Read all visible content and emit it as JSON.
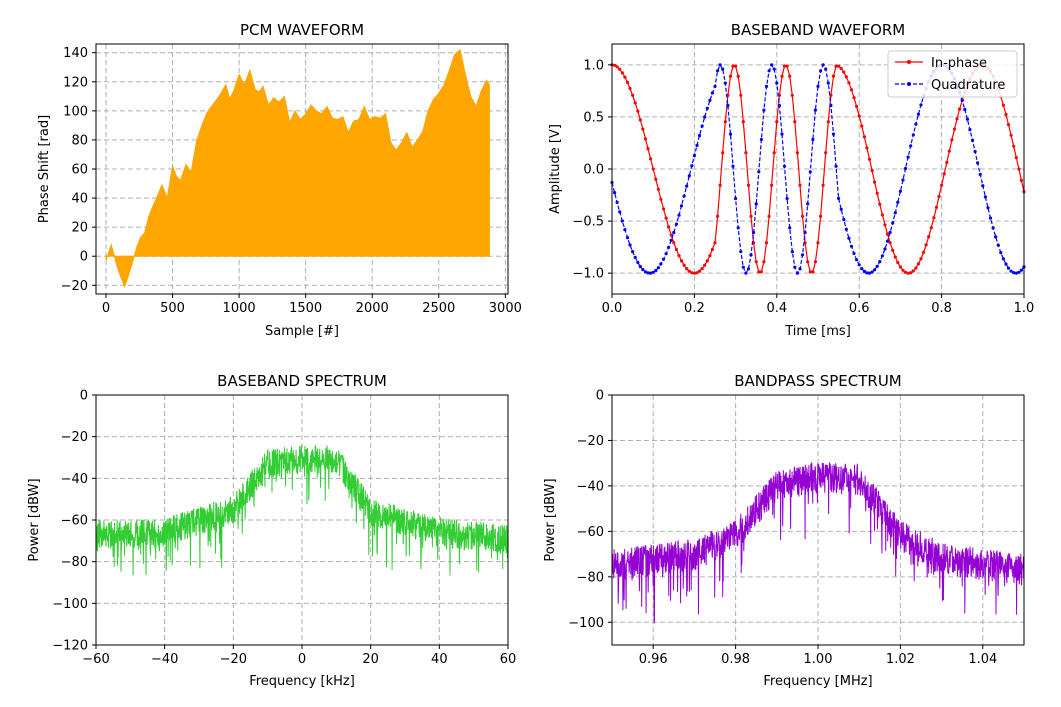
{
  "chart_data": [
    {
      "type": "area",
      "title": "PCM WAVEFORM",
      "xlabel": "Sample [#]",
      "ylabel": "Phase Shift [rad]",
      "xlim": [
        -75,
        3020
      ],
      "ylim": [
        -26,
        146
      ],
      "xticks": [
        0,
        500,
        1000,
        1500,
        2000,
        2500,
        3000
      ],
      "xtick_labels": [
        "0",
        "500",
        "1000",
        "1500",
        "2000",
        "2500",
        "3000"
      ],
      "yticks": [
        -20,
        0,
        20,
        40,
        60,
        80,
        100,
        120,
        140
      ],
      "ytick_labels": [
        "−20",
        "0",
        "20",
        "40",
        "60",
        "80",
        "100",
        "120",
        "140"
      ],
      "grid": true,
      "color": "#ffa500",
      "series": [
        {
          "x": [
            0,
            40,
            80,
            110,
            140,
            170,
            200,
            230,
            260,
            290,
            320,
            350,
            380,
            420,
            460,
            500,
            530,
            560,
            600,
            640,
            680,
            720,
            760,
            800,
            850,
            900,
            930,
            960,
            1000,
            1040,
            1080,
            1120,
            1150,
            1180,
            1220,
            1260,
            1300,
            1340,
            1380,
            1420,
            1460,
            1500,
            1540,
            1580,
            1620,
            1660,
            1700,
            1740,
            1780,
            1820,
            1860,
            1900,
            1940,
            1980,
            2020,
            2060,
            2100,
            2140,
            2180,
            2220,
            2260,
            2300,
            2340,
            2380,
            2420,
            2460,
            2500,
            2540,
            2580,
            2620,
            2660,
            2700,
            2740,
            2780,
            2820,
            2860,
            2880
          ],
          "y": [
            -3,
            8,
            -6,
            -14,
            -21,
            -13,
            -4,
            6,
            13,
            16,
            27,
            34,
            40,
            49,
            40,
            62,
            55,
            52,
            63,
            58,
            79,
            90,
            99,
            104,
            110,
            118,
            108,
            114,
            125,
            118,
            128,
            115,
            113,
            117,
            104,
            109,
            106,
            110,
            92,
            100,
            94,
            98,
            104,
            100,
            98,
            103,
            95,
            94,
            96,
            85,
            93,
            94,
            103,
            94,
            96,
            95,
            98,
            78,
            73,
            78,
            85,
            75,
            80,
            86,
            100,
            108,
            112,
            118,
            128,
            139,
            142,
            125,
            110,
            103,
            114,
            121,
            118
          ]
        }
      ]
    },
    {
      "type": "line",
      "title": "BASEBAND WAVEFORM",
      "xlabel": "Time [ms]",
      "ylabel": "Amplitude [V]",
      "xlim": [
        0,
        1.0
      ],
      "ylim": [
        -1.2,
        1.2
      ],
      "xticks": [
        0,
        0.2,
        0.4,
        0.6,
        0.8,
        1.0
      ],
      "xtick_labels": [
        "0.0",
        "0.2",
        "0.4",
        "0.6",
        "0.8",
        "1.0"
      ],
      "yticks": [
        -1.0,
        -0.5,
        0.0,
        0.5,
        1.0
      ],
      "ytick_labels": [
        "−1.0",
        "−0.5",
        "0.0",
        "0.5",
        "1.0"
      ],
      "grid": true,
      "legend_position": "top-right",
      "series": [
        {
          "name": "In-phase",
          "color": "#ff0000",
          "style": "solid",
          "marker": "dot"
        },
        {
          "name": "Quadrature",
          "color": "#0000ff",
          "style": "dashed",
          "marker": "dot"
        }
      ]
    },
    {
      "type": "line",
      "title": "BASEBAND SPECTRUM",
      "xlabel": "Frequency [kHz]",
      "ylabel": "Power [dBW]",
      "xlim": [
        -60,
        60
      ],
      "ylim": [
        -120,
        0
      ],
      "xticks": [
        -60,
        -40,
        -20,
        0,
        20,
        40,
        60
      ],
      "xtick_labels": [
        "−60",
        "−40",
        "−20",
        "0",
        "20",
        "40",
        "60"
      ],
      "yticks": [
        -120,
        -100,
        -80,
        -60,
        -40,
        -20,
        0
      ],
      "ytick_labels": [
        "−120",
        "−100",
        "−80",
        "−60",
        "−40",
        "−20",
        "0"
      ],
      "grid": true,
      "color": "#32cd32",
      "envelope": {
        "x": [
          -60,
          -40,
          -20,
          -10,
          0,
          10,
          20,
          40,
          60
        ],
        "y": [
          -67,
          -66,
          -55,
          -33,
          -31,
          -31,
          -56,
          -66,
          -69
        ]
      }
    },
    {
      "type": "line",
      "title": "BANDPASS SPECTRUM",
      "xlabel": "Frequency [MHz]",
      "ylabel": "Power [dBW]",
      "xlim": [
        0.95,
        1.05
      ],
      "ylim": [
        -110,
        0
      ],
      "xticks": [
        0.96,
        0.98,
        1.0,
        1.02,
        1.04
      ],
      "xtick_labels": [
        "0.96",
        "0.98",
        "1.00",
        "1.02",
        "1.04"
      ],
      "yticks": [
        -100,
        -80,
        -60,
        -40,
        -20,
        0
      ],
      "ytick_labels": [
        "−100",
        "−80",
        "−60",
        "−40",
        "−20",
        "0"
      ],
      "grid": true,
      "color": "#9400d3",
      "envelope": {
        "x": [
          0.95,
          0.97,
          0.98,
          0.99,
          1.0,
          1.01,
          1.02,
          1.03,
          1.05
        ],
        "y": [
          -75,
          -70,
          -62,
          -40,
          -36,
          -37,
          -62,
          -72,
          -77
        ]
      }
    }
  ]
}
